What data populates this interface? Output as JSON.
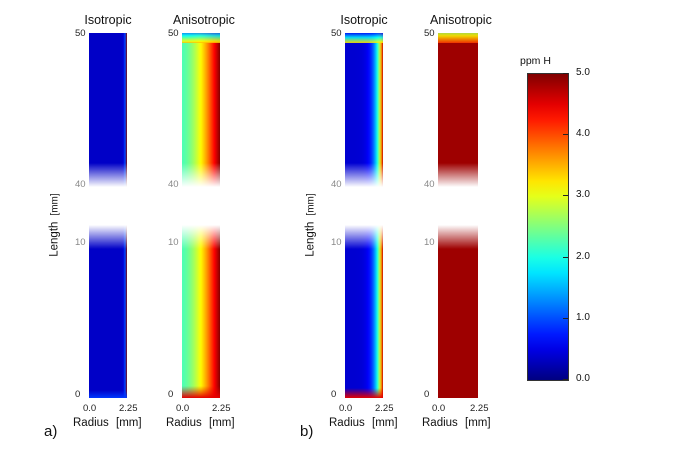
{
  "figure": {
    "label_a": "a)",
    "label_b": "b)",
    "panels": [
      {
        "group": "a",
        "title": "Isotropic",
        "field": "a_iso"
      },
      {
        "group": "a",
        "title": "Anisotropic",
        "field": "a_aniso"
      },
      {
        "group": "b",
        "title": "Isotropic",
        "field": "b_iso"
      },
      {
        "group": "b",
        "title": "Anisotropic",
        "field": "b_aniso"
      }
    ],
    "length_axis": {
      "label": "Length",
      "unit": "[mm]",
      "ticks_upper": [
        "50",
        "40"
      ],
      "ticks_lower": [
        "10",
        "0"
      ]
    },
    "radius_axis": {
      "label": "Radius",
      "unit": "[mm]",
      "ticks": [
        "0.0",
        "2.25"
      ]
    },
    "colorbar": {
      "title": "ppm H",
      "min": 0.0,
      "max": 5.0,
      "ticks": [
        "5.0",
        "4.0",
        "3.0",
        "2.0",
        "1.0",
        "0.0"
      ],
      "colormap": "jet"
    }
  }
}
